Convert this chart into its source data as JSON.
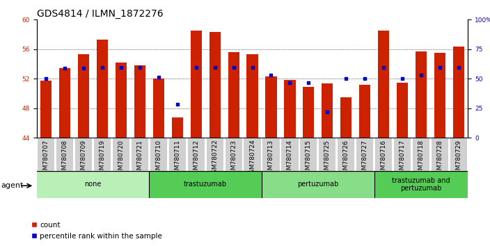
{
  "title": "GDS4814 / ILMN_1872276",
  "samples": [
    "GSM780707",
    "GSM780708",
    "GSM780709",
    "GSM780719",
    "GSM780720",
    "GSM780721",
    "GSM780710",
    "GSM780711",
    "GSM780712",
    "GSM780722",
    "GSM780723",
    "GSM780724",
    "GSM780713",
    "GSM780714",
    "GSM780715",
    "GSM780725",
    "GSM780726",
    "GSM780727",
    "GSM780716",
    "GSM780717",
    "GSM780718",
    "GSM780728",
    "GSM780729"
  ],
  "count_values": [
    51.7,
    53.4,
    55.3,
    57.3,
    54.2,
    53.8,
    52.0,
    46.8,
    58.5,
    58.3,
    55.6,
    55.3,
    52.3,
    51.8,
    50.9,
    51.4,
    49.5,
    51.2,
    58.5,
    51.5,
    55.7,
    55.5,
    56.4
  ],
  "percentile_values_axis": [
    52.0,
    53.4,
    53.4,
    53.5,
    53.5,
    53.5,
    52.2,
    48.5,
    53.5,
    53.5,
    53.5,
    53.5,
    52.5,
    51.5,
    51.5,
    47.5,
    52.0,
    52.0,
    53.5,
    52.0,
    52.5,
    53.5,
    53.5
  ],
  "groups": [
    {
      "label": "none",
      "start": 0,
      "end": 6,
      "color": "#b8f0b8"
    },
    {
      "label": "trastuzumab",
      "start": 6,
      "end": 12,
      "color": "#55cc55"
    },
    {
      "label": "pertuzumab",
      "start": 12,
      "end": 18,
      "color": "#88dd88"
    },
    {
      "label": "trastuzumab and\npertuzumab",
      "start": 18,
      "end": 23,
      "color": "#55cc55"
    }
  ],
  "ylim_left": [
    44,
    60
  ],
  "yticks_left": [
    44,
    48,
    52,
    56,
    60
  ],
  "ylim_right": [
    0,
    100
  ],
  "yticks_right": [
    0,
    25,
    50,
    75,
    100
  ],
  "bar_color": "#cc2200",
  "dot_color": "#0000cc",
  "background_color": "#ffffff",
  "title_fontsize": 10,
  "tick_fontsize": 6.5,
  "label_fontsize": 8,
  "agent_label": "agent",
  "legend_count": "count",
  "legend_pct": "percentile rank within the sample"
}
